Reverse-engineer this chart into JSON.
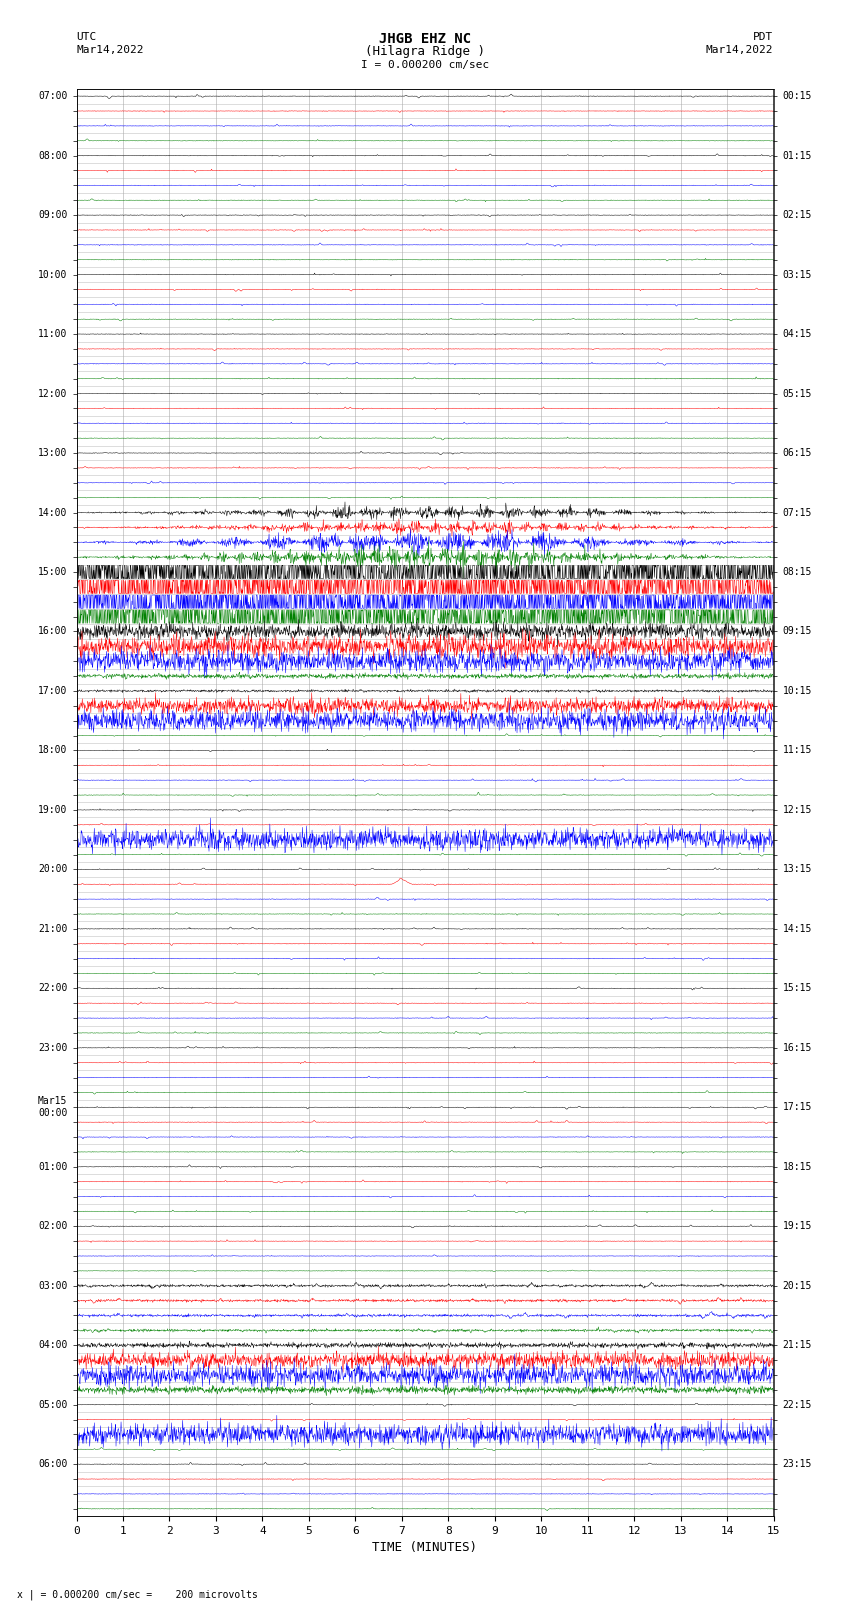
{
  "title_line1": "JHGB EHZ NC",
  "title_line2": "(Hilagra Ridge )",
  "title_line3": "I = 0.000200 cm/sec",
  "left_header_line1": "UTC",
  "left_header_line2": "Mar14,2022",
  "right_header_line1": "PDT",
  "right_header_line2": "Mar14,2022",
  "bottom_label": "TIME (MINUTES)",
  "bottom_note": "x | = 0.000200 cm/sec =    200 microvolts",
  "x_ticks": [
    0,
    1,
    2,
    3,
    4,
    5,
    6,
    7,
    8,
    9,
    10,
    11,
    12,
    13,
    14,
    15
  ],
  "trace_colors": [
    "black",
    "red",
    "blue",
    "green"
  ],
  "background_color": "white",
  "grid_color": "#aaaaaa",
  "fig_width": 8.5,
  "fig_height": 16.13,
  "dpi": 100,
  "left_times": [
    "07:00",
    "",
    "",
    "",
    "08:00",
    "",
    "",
    "",
    "09:00",
    "",
    "",
    "",
    "10:00",
    "",
    "",
    "",
    "11:00",
    "",
    "",
    "",
    "12:00",
    "",
    "",
    "",
    "13:00",
    "",
    "",
    "",
    "14:00",
    "",
    "",
    "",
    "15:00",
    "",
    "",
    "",
    "16:00",
    "",
    "",
    "",
    "17:00",
    "",
    "",
    "",
    "18:00",
    "",
    "",
    "",
    "19:00",
    "",
    "",
    "",
    "20:00",
    "",
    "",
    "",
    "21:00",
    "",
    "",
    "",
    "22:00",
    "",
    "",
    "",
    "23:00",
    "",
    "",
    "",
    "Mar15\n00:00",
    "",
    "",
    "",
    "01:00",
    "",
    "",
    "",
    "02:00",
    "",
    "",
    "",
    "03:00",
    "",
    "",
    "",
    "04:00",
    "",
    "",
    "",
    "05:00",
    "",
    "",
    "",
    "06:00",
    "",
    "",
    ""
  ],
  "right_times": [
    "00:15",
    "",
    "",
    "",
    "01:15",
    "",
    "",
    "",
    "02:15",
    "",
    "",
    "",
    "03:15",
    "",
    "",
    "",
    "04:15",
    "",
    "",
    "",
    "05:15",
    "",
    "",
    "",
    "06:15",
    "",
    "",
    "",
    "07:15",
    "",
    "",
    "",
    "08:15",
    "",
    "",
    "",
    "09:15",
    "",
    "",
    "",
    "10:15",
    "",
    "",
    "",
    "11:15",
    "",
    "",
    "",
    "12:15",
    "",
    "",
    "",
    "13:15",
    "",
    "",
    "",
    "14:15",
    "",
    "",
    "",
    "15:15",
    "",
    "",
    "",
    "16:15",
    "",
    "",
    "",
    "17:15",
    "",
    "",
    "",
    "18:15",
    "",
    "",
    "",
    "19:15",
    "",
    "",
    "",
    "20:15",
    "",
    "",
    "",
    "21:15",
    "",
    "",
    "",
    "22:15",
    "",
    "",
    "",
    "23:15",
    "",
    "",
    ""
  ]
}
